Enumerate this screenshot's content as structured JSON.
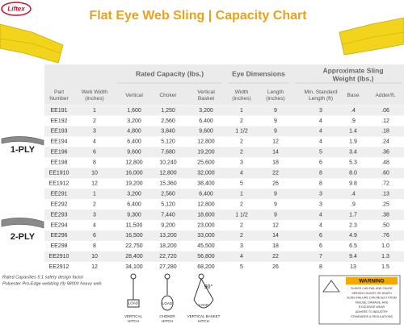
{
  "header": {
    "logo": "Liftex",
    "title": "Flat Eye Web Sling | Capacity Chart"
  },
  "table": {
    "groups": [
      [
        "Rated Capacity (lbs.)"
      ],
      [
        "Eye Dimensions"
      ],
      [
        "Approximate Sling",
        "Weight (lbs.)"
      ]
    ],
    "columns": [
      [
        "Part",
        "Number"
      ],
      [
        "Web Width",
        "(inches)"
      ],
      [
        "Vertical"
      ],
      [
        "Choker"
      ],
      [
        "Vertical",
        "Basket"
      ],
      [
        "Width",
        "(inches)"
      ],
      [
        "Length",
        "(inches)"
      ],
      [
        "Min. Standard",
        "Length (ft)"
      ],
      [
        "Base"
      ],
      [
        "Adder/ft."
      ]
    ],
    "sections": [
      {
        "label": "1-PLY",
        "rows": [
          [
            "EE191",
            "1",
            "1,600",
            "1,250",
            "3,200",
            "1",
            "9",
            "3",
            ".4",
            ".06"
          ],
          [
            "EE192",
            "2",
            "3,200",
            "2,560",
            "6,400",
            "2",
            "9",
            "4",
            ".9",
            ".12"
          ],
          [
            "EE193",
            "3",
            "4,800",
            "3,840",
            "9,600",
            "1 1/2",
            "9",
            "4",
            "1.4",
            ".18"
          ],
          [
            "EE194",
            "4",
            "6,400",
            "5,120",
            "12,800",
            "2",
            "12",
            "4",
            "1.9",
            ".24"
          ],
          [
            "EE196",
            "6",
            "9,600",
            "7,680",
            "19,200",
            "2",
            "14",
            "5",
            "3.4",
            ".36"
          ],
          [
            "EE198",
            "8",
            "12,800",
            "10,240",
            "25,600",
            "3",
            "18",
            "6",
            "5.3",
            ".48"
          ],
          [
            "EE1910",
            "10",
            "16,000",
            "12,800",
            "32,000",
            "4",
            "22",
            "8",
            "8.0",
            ".60"
          ],
          [
            "EE1912",
            "12",
            "19,200",
            "15,360",
            "38,400",
            "5",
            "26",
            "8",
            "9.8",
            ".72"
          ]
        ]
      },
      {
        "label": "2-PLY",
        "rows": [
          [
            "EE291",
            "1",
            "3,200",
            "2,560",
            "6,400",
            "1",
            "9",
            "3",
            ".4",
            ".13"
          ],
          [
            "EE292",
            "2",
            "6,400",
            "5,120",
            "12,800",
            "2",
            "9",
            "3",
            ".9",
            ".25"
          ],
          [
            "EE293",
            "3",
            "9,300",
            "7,440",
            "18,600",
            "1 1/2",
            "9",
            "4",
            "1.7",
            ".38"
          ],
          [
            "EE294",
            "4",
            "11,500",
            "9,200",
            "23,000",
            "2",
            "12",
            "4",
            "2.3",
            ".50"
          ],
          [
            "EE296",
            "6",
            "16,500",
            "13,200",
            "33,000",
            "2",
            "14",
            "6",
            "4.9",
            ".76"
          ],
          [
            "EE298",
            "8",
            "22,750",
            "18,200",
            "45,500",
            "3",
            "18",
            "6",
            "6.5",
            "1.0"
          ],
          [
            "EE2910",
            "10",
            "28,400",
            "22,720",
            "56,800",
            "4",
            "22",
            "7",
            "9.4",
            "1.3"
          ],
          [
            "EE2912",
            "12",
            "34,100",
            "27,280",
            "68,200",
            "5",
            "26",
            "8",
            "13",
            "1.5"
          ]
        ]
      }
    ]
  },
  "notes": [
    "Rated Capacities 5:1 safety design factor",
    "Polyester Pro-Edge webbing (9) 9800# heavy web"
  ],
  "hitches": [
    {
      "load": "LOAD",
      "label": [
        "VERTICAL",
        "HITCH"
      ]
    },
    {
      "load": "LOAD",
      "label": [
        "CHOKER",
        "HITCH"
      ]
    },
    {
      "load": "LOAD",
      "label": [
        "VERTICAL BASKET",
        "HITCH"
      ],
      "angle": "90°"
    }
  ],
  "warning": {
    "title": "WARNING",
    "lines": [
      "SLINGS CAN FAIL AND CAUSE",
      "SERIOUS INJURY OR DEATH",
      "SLING FAILURE CAN RESULT FROM",
      "MISUSE, DAMAGE, AND",
      "EXCESSIVE WEAR",
      "ADHERE TO INDUSTRY",
      "STANDARDS & REGULATIONS"
    ]
  }
}
